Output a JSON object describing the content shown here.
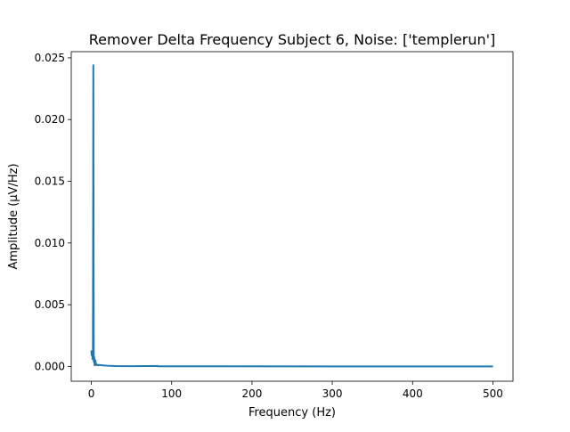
{
  "chart_data": {
    "type": "line",
    "title": "Remover Delta Frequency Subject 6, Noise: ['templerun']",
    "xlabel": "Frequency (Hz)",
    "ylabel": "Amplitude (µV/Hz)",
    "xlim": [
      -25,
      525
    ],
    "ylim": [
      -0.0012,
      0.0255
    ],
    "x_ticks": [
      0,
      100,
      200,
      300,
      400,
      500
    ],
    "x_tick_labels": [
      "0",
      "100",
      "200",
      "300",
      "400",
      "500"
    ],
    "y_ticks": [
      0.0,
      0.005,
      0.01,
      0.015,
      0.02,
      0.025
    ],
    "y_tick_labels": [
      "0.000",
      "0.005",
      "0.010",
      "0.015",
      "0.020",
      "0.025"
    ],
    "grid": false,
    "color": "#1f77b4",
    "series": [
      {
        "x": [
          0,
          0.5,
          1,
          1.5,
          2,
          2.5,
          3,
          3.5,
          4,
          5,
          6,
          7,
          8,
          10,
          15,
          20,
          30,
          50,
          82,
          83,
          150,
          300,
          500
        ],
        "y": [
          0.0013,
          0.0009,
          0.0012,
          0.0006,
          0.001,
          0.0244,
          0.0004,
          0.0008,
          0.0001,
          0.0005,
          0.0001,
          0.00015,
          0.0001,
          0.00012,
          8e-05,
          5e-05,
          3e-05,
          2e-05,
          4e-05,
          1e-05,
          1e-05,
          0.0,
          0.0
        ]
      }
    ]
  }
}
